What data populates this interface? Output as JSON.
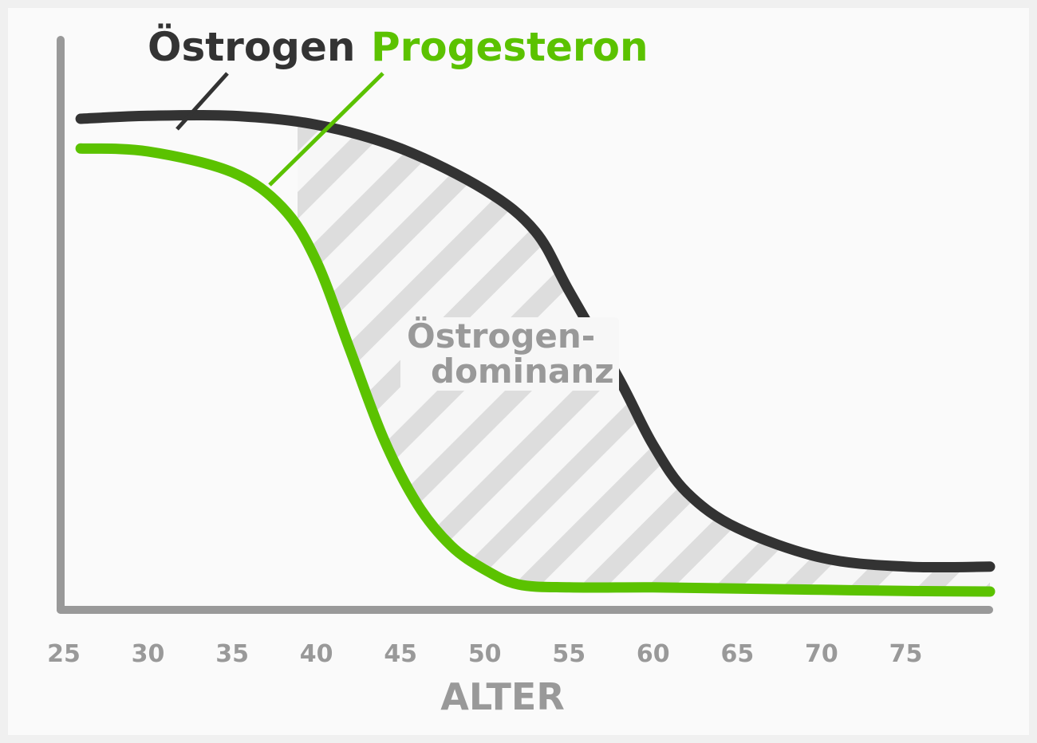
{
  "chart_data": {
    "type": "line",
    "title": "",
    "xlabel": "ALTER",
    "ylabel": "",
    "xlim": [
      25,
      80
    ],
    "ylim": [
      0,
      100
    ],
    "x_ticks": [
      25,
      30,
      35,
      40,
      45,
      50,
      55,
      60,
      65,
      70,
      75
    ],
    "x_tick_labels": [
      "25",
      "30",
      "35",
      "40",
      "45",
      "50",
      "55",
      "60",
      "65",
      "70",
      "75"
    ],
    "grid": false,
    "legend": "top-left",
    "series": [
      {
        "name": "Östrogen",
        "color": "#333333",
        "x": [
          26,
          30,
          35,
          40,
          45,
          50,
          53,
          55,
          58,
          60,
          62,
          65,
          70,
          75,
          80
        ],
        "y": [
          84,
          84.5,
          84.5,
          83,
          79,
          72,
          65,
          55,
          40,
          29,
          21,
          15,
          10,
          8.5,
          8.5
        ]
      },
      {
        "name": "Progesteron",
        "color": "#5bc200",
        "x": [
          26,
          30,
          35,
          38,
          40,
          42,
          44,
          46,
          48,
          50,
          52,
          55,
          60,
          65,
          70,
          75,
          80
        ],
        "y": [
          79,
          78.5,
          75,
          69,
          60,
          45,
          30,
          19,
          12,
          8,
          5.5,
          5,
          5,
          4.8,
          4.6,
          4.4,
          4.3
        ]
      }
    ],
    "annotations": [
      {
        "text_line1": "Östrogen-",
        "text_line2": "dominanz",
        "fill_pattern": "diagonal-stripes",
        "stripe_color": "#dddddd"
      }
    ]
  }
}
